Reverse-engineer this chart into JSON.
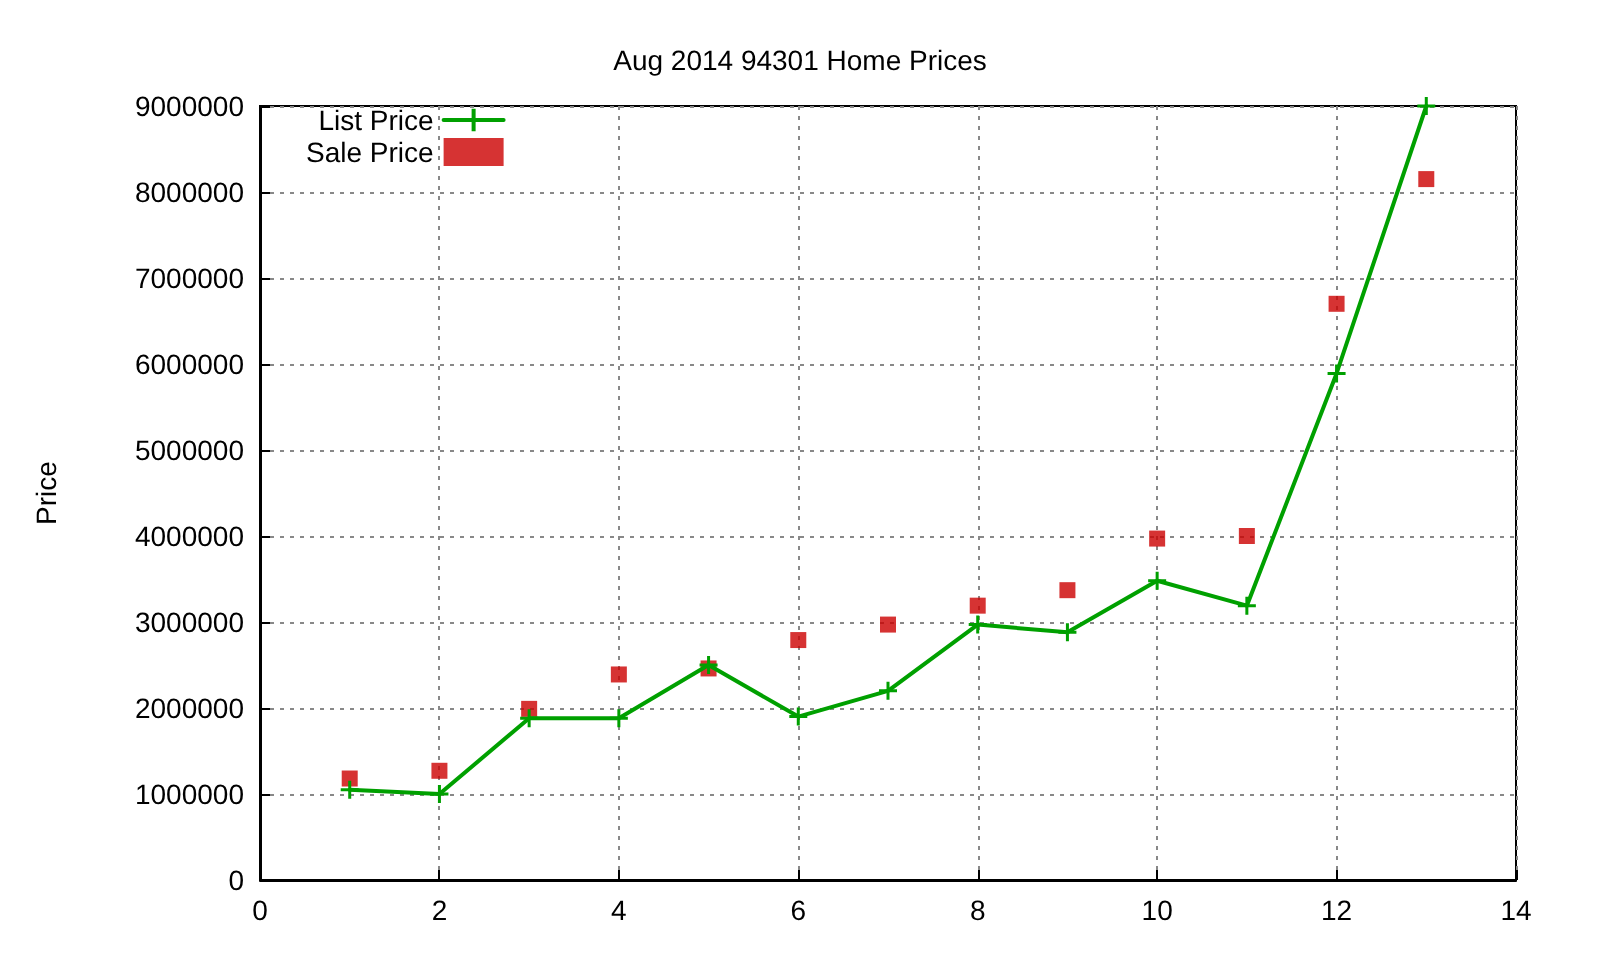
{
  "chart_data": {
    "type": "line",
    "title": "Aug 2014 94301 Home Prices",
    "ylabel": "Price",
    "x": [
      1,
      2,
      3,
      4,
      5,
      6,
      7,
      8,
      9,
      10,
      11,
      12,
      13
    ],
    "series": [
      {
        "name": "List Price",
        "color": "#00a000",
        "marker": "cross",
        "values": [
          1050000,
          1000000,
          1880000,
          1880000,
          2500000,
          1900000,
          2200000,
          2970000,
          2880000,
          3480000,
          3190000,
          5890000,
          9000000
        ]
      },
      {
        "name": "Sale Price",
        "type": "scatter",
        "color": "#cc0000",
        "marker": "square",
        "values": [
          1180000,
          1270000,
          1990000,
          2390000,
          2460000,
          2790000,
          2970000,
          3190000,
          3370000,
          3970000,
          4000000,
          6700000,
          8150000
        ]
      }
    ],
    "xlim": [
      0,
      14
    ],
    "xticks": [
      0,
      2,
      4,
      6,
      8,
      10,
      12,
      14
    ],
    "ylim": [
      0,
      9000000
    ],
    "yticks": [
      0,
      1000000,
      2000000,
      3000000,
      4000000,
      5000000,
      6000000,
      7000000,
      8000000,
      9000000
    ],
    "grid": true,
    "legend": "top left",
    "line_style": "solid"
  }
}
